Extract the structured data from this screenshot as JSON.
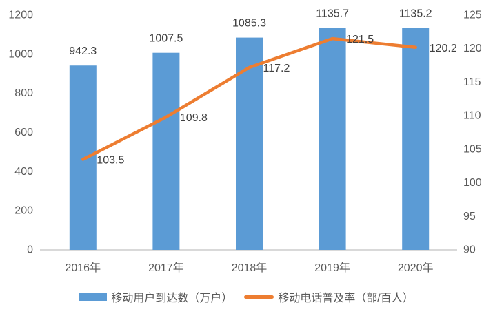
{
  "chart_data": {
    "type": "combo-bar-line",
    "categories": [
      "2016年",
      "2017年",
      "2018年",
      "2019年",
      "2020年"
    ],
    "series": [
      {
        "name": "移动用户到达数（万户）",
        "type": "bar",
        "axis": "left",
        "values": [
          942.3,
          1007.5,
          1085.3,
          1135.7,
          1135.2
        ],
        "labels": [
          "942.3",
          "1007.5",
          "1085.3",
          "1135.7",
          "1135.2"
        ],
        "color": "#5B9BD5"
      },
      {
        "name": "移动电话普及率（部/百人）",
        "type": "line",
        "axis": "right",
        "values": [
          103.5,
          109.8,
          117.2,
          121.5,
          120.2
        ],
        "labels": [
          "103.5",
          "109.8",
          "117.2",
          "121.5",
          "120.2"
        ],
        "color": "#ED7D31"
      }
    ],
    "left_axis": {
      "min": 0,
      "max": 1200,
      "step": 200,
      "ticks": [
        "0",
        "200",
        "400",
        "600",
        "800",
        "1000",
        "1200"
      ]
    },
    "right_axis": {
      "min": 90,
      "max": 125,
      "step": 5,
      "ticks": [
        "90",
        "95",
        "100",
        "105",
        "110",
        "115",
        "120",
        "125"
      ]
    },
    "grid": false,
    "legend_position": "bottom",
    "title": ""
  },
  "colors": {
    "bar": "#5B9BD5",
    "line": "#ED7D31",
    "axis_line": "#D9D9D9",
    "axis_text": "#595959",
    "data_label_text": "#404040",
    "background": "#FFFFFF"
  }
}
